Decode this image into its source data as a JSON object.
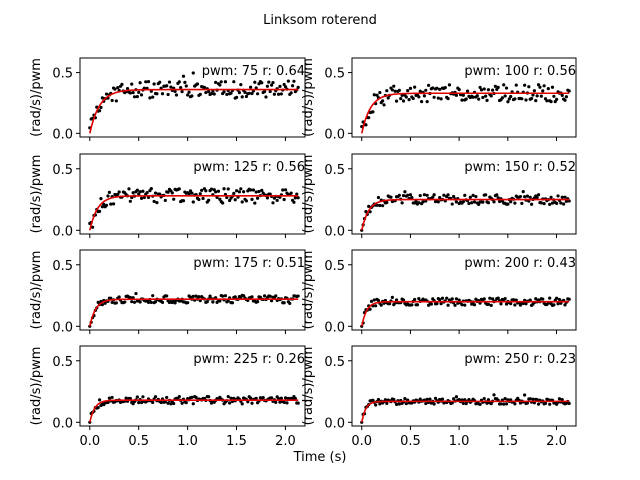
{
  "figure": {
    "title": "Linksom roterend",
    "xlabel": "Time (s)"
  },
  "chart_data": {
    "type": "scatter",
    "title": "Linksom roterend",
    "xlabel": "Time (s)",
    "ylabel": "(rad/s)/pwm",
    "xlim": [
      -0.1,
      2.2
    ],
    "ylim": [
      -0.03,
      0.62
    ],
    "xticks": [
      "0.0",
      "0.5",
      "1.0",
      "1.5",
      "2.0"
    ],
    "yticks": [
      "0.0",
      "0.5"
    ],
    "fit_color": "#e00000",
    "point_color": "#000000",
    "panels": [
      {
        "label": "pwm: 75 r: 0.64",
        "pwm": 75,
        "r": 0.64,
        "plateau": 0.36,
        "tau": 0.1,
        "noise": 0.07
      },
      {
        "label": "pwm: 100 r: 0.56",
        "pwm": 100,
        "r": 0.56,
        "plateau": 0.33,
        "tau": 0.09,
        "noise": 0.07
      },
      {
        "label": "pwm: 125 r: 0.56",
        "pwm": 125,
        "r": 0.56,
        "plateau": 0.28,
        "tau": 0.08,
        "noise": 0.06
      },
      {
        "label": "pwm: 150 r: 0.52",
        "pwm": 150,
        "r": 0.52,
        "plateau": 0.25,
        "tau": 0.07,
        "noise": 0.04
      },
      {
        "label": "pwm: 175 r: 0.51",
        "pwm": 175,
        "r": 0.51,
        "plateau": 0.22,
        "tau": 0.06,
        "noise": 0.03
      },
      {
        "label": "pwm: 200 r: 0.43",
        "pwm": 200,
        "r": 0.43,
        "plateau": 0.2,
        "tau": 0.05,
        "noise": 0.03
      },
      {
        "label": "pwm: 225 r: 0.26",
        "pwm": 225,
        "r": 0.26,
        "plateau": 0.18,
        "tau": 0.05,
        "noise": 0.03
      },
      {
        "label": "pwm: 250 r: 0.23",
        "pwm": 250,
        "r": 0.23,
        "plateau": 0.17,
        "tau": 0.04,
        "noise": 0.025
      }
    ]
  }
}
